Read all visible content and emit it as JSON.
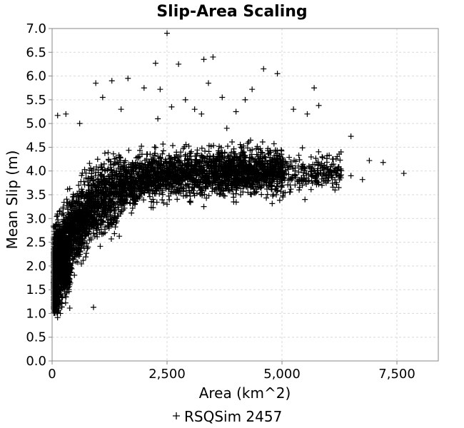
{
  "chart_data": {
    "type": "scatter",
    "title": "Slip-Area Scaling",
    "xlabel": "Area (km^2)",
    "ylabel": "Mean Slip (m)",
    "xlim": [
      0,
      8400
    ],
    "ylim": [
      0,
      7
    ],
    "x_ticks": [
      0,
      2500,
      5000,
      7500
    ],
    "x_tick_labels": [
      "0",
      "2,500",
      "5,000",
      "7,500"
    ],
    "y_ticks": [
      0,
      0.5,
      1,
      1.5,
      2,
      2.5,
      3,
      3.5,
      4,
      4.5,
      5,
      5.5,
      6,
      6.5,
      7
    ],
    "y_tick_labels": [
      "0.0",
      "0.5",
      "1.0",
      "1.5",
      "2.0",
      "2.5",
      "3.0",
      "3.5",
      "4.0",
      "4.5",
      "5.0",
      "5.5",
      "6.0",
      "6.5",
      "7.0"
    ],
    "grid": true,
    "legend_position": "bottom-center",
    "marker": "+",
    "series": [
      {
        "name": "RSQSim 2457",
        "color": "#000000",
        "points": [
          [
            2500,
            6.9
          ],
          [
            2750,
            6.25
          ],
          [
            3500,
            6.4
          ],
          [
            3300,
            6.35
          ],
          [
            4600,
            6.15
          ],
          [
            4900,
            6.05
          ],
          [
            5700,
            5.75
          ],
          [
            5800,
            5.38
          ],
          [
            2250,
            6.27
          ],
          [
            1100,
            5.55
          ],
          [
            950,
            5.85
          ],
          [
            1300,
            5.9
          ],
          [
            1650,
            5.95
          ],
          [
            2000,
            5.75
          ],
          [
            2350,
            5.72
          ],
          [
            3400,
            5.85
          ],
          [
            4350,
            5.72
          ],
          [
            5250,
            5.3
          ],
          [
            5550,
            5.2
          ],
          [
            6500,
            4.73
          ],
          [
            6900,
            4.22
          ],
          [
            7200,
            4.18
          ],
          [
            7650,
            3.95
          ],
          [
            6200,
            4.02
          ],
          [
            6500,
            3.9
          ],
          [
            6750,
            3.82
          ],
          [
            5500,
            3.4
          ],
          [
            300,
            5.2
          ],
          [
            120,
            5.17
          ],
          [
            600,
            5.0
          ],
          [
            900,
            1.13
          ],
          [
            180,
            1.0
          ],
          [
            2900,
            5.5
          ],
          [
            3700,
            5.55
          ],
          [
            4200,
            5.5
          ],
          [
            3100,
            5.3
          ],
          [
            1500,
            5.3
          ],
          [
            2600,
            5.35
          ],
          [
            3250,
            5.2
          ],
          [
            4000,
            5.25
          ],
          [
            3800,
            4.9
          ],
          [
            2300,
            5.1
          ],
          [
            3950,
            3.35
          ],
          [
            3300,
            3.25
          ],
          [
            2500,
            3.3
          ],
          [
            4100,
            3.5
          ],
          [
            6100,
            4.25
          ],
          [
            5900,
            3.95
          ]
        ]
      }
    ]
  }
}
